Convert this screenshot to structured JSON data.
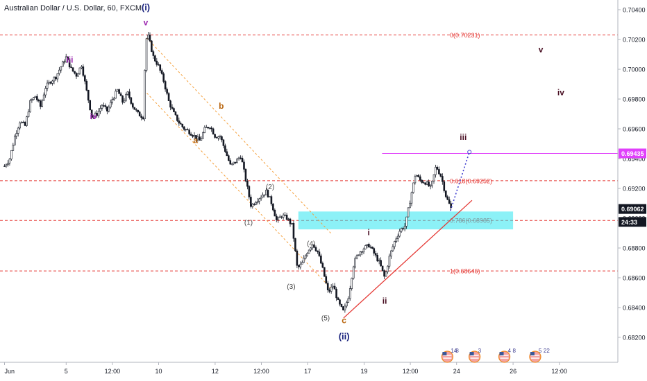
{
  "chart_title": "Australian Dollar / U.S. Dollar, 60, FXCM",
  "colors": {
    "candle": "#131722",
    "fib": "#e53935",
    "zone": "#2ee6f0",
    "resistance": "#e040fb",
    "trendline": "#e53935",
    "channel": "#f5a03c",
    "wave_primary": "#1a237e",
    "wave_purple": "#9c27b0",
    "wave_dark": "#4a1024",
    "wave_orange": "#b8640c",
    "wave_gray": "#444444",
    "projection": "#3f3fcf"
  },
  "chart_data": {
    "type": "candlestick",
    "ylim": [
      0.6812,
      0.7045
    ],
    "y_ticks": [
      "0.70400",
      "0.70200",
      "0.70000",
      "0.69800",
      "0.69600",
      "0.69400",
      "0.69200",
      "0.69000",
      "0.68800",
      "0.68600",
      "0.68400",
      "0.68200"
    ],
    "x_ticks": [
      {
        "label": "Jun",
        "t": 0
      },
      {
        "label": "5",
        "t": 12
      },
      {
        "label": "12:00",
        "t": 21
      },
      {
        "label": "10",
        "t": 30
      },
      {
        "label": "12",
        "t": 41
      },
      {
        "label": "12:00",
        "t": 50
      },
      {
        "label": "17",
        "t": 59
      },
      {
        "label": "19",
        "t": 70
      },
      {
        "label": "12:00",
        "t": 79
      },
      {
        "label": "24",
        "t": 88
      },
      {
        "label": "26",
        "t": 99
      },
      {
        "label": "12:00",
        "t": 108
      }
    ],
    "t_range": [
      0,
      120
    ],
    "price_path": [
      [
        0,
        0.6935
      ],
      [
        1,
        0.694
      ],
      [
        2,
        0.6955
      ],
      [
        3,
        0.6965
      ],
      [
        4,
        0.6962
      ],
      [
        5,
        0.6978
      ],
      [
        6,
        0.6982
      ],
      [
        7,
        0.6975
      ],
      [
        8,
        0.6988
      ],
      [
        9,
        0.6992
      ],
      [
        10,
        0.6995
      ],
      [
        11,
        0.7002
      ],
      [
        12,
        0.7008
      ],
      [
        13,
        0.7
      ],
      [
        14,
        0.6996
      ],
      [
        15,
        0.7003
      ],
      [
        16,
        0.6985
      ],
      [
        17,
        0.6968
      ],
      [
        18,
        0.697
      ],
      [
        19,
        0.6976
      ],
      [
        20,
        0.6972
      ],
      [
        21,
        0.698
      ],
      [
        22,
        0.6986
      ],
      [
        23,
        0.6978
      ],
      [
        24,
        0.6984
      ],
      [
        25,
        0.6975
      ],
      [
        26,
        0.697
      ],
      [
        27,
        0.6968
      ],
      [
        27.5,
        0.702
      ],
      [
        28,
        0.7022
      ],
      [
        29,
        0.7008
      ],
      [
        30,
        0.7002
      ],
      [
        31,
        0.6992
      ],
      [
        32,
        0.6978
      ],
      [
        33,
        0.697
      ],
      [
        34,
        0.6964
      ],
      [
        35,
        0.696
      ],
      [
        36,
        0.6958
      ],
      [
        37,
        0.6955
      ],
      [
        38,
        0.6952
      ],
      [
        39,
        0.696
      ],
      [
        40,
        0.6962
      ],
      [
        41,
        0.6955
      ],
      [
        42,
        0.6955
      ],
      [
        43,
        0.6945
      ],
      [
        44,
        0.6935
      ],
      [
        45,
        0.6938
      ],
      [
        46,
        0.6942
      ],
      [
        47,
        0.6925
      ],
      [
        48,
        0.6908
      ],
      [
        49,
        0.6912
      ],
      [
        50,
        0.6915
      ],
      [
        51,
        0.6918
      ],
      [
        52,
        0.691
      ],
      [
        53,
        0.6898
      ],
      [
        54,
        0.6902
      ],
      [
        55,
        0.69
      ],
      [
        56,
        0.6895
      ],
      [
        57,
        0.6866
      ],
      [
        58,
        0.687
      ],
      [
        59,
        0.6878
      ],
      [
        60,
        0.6883
      ],
      [
        61,
        0.6877
      ],
      [
        62,
        0.6865
      ],
      [
        63,
        0.685
      ],
      [
        64,
        0.6855
      ],
      [
        65,
        0.6843
      ],
      [
        66,
        0.6837
      ],
      [
        67,
        0.6848
      ],
      [
        68,
        0.687
      ],
      [
        69,
        0.6877
      ],
      [
        70,
        0.688
      ],
      [
        71,
        0.6882
      ],
      [
        72,
        0.6876
      ],
      [
        73,
        0.687
      ],
      [
        74,
        0.686
      ],
      [
        75,
        0.6875
      ],
      [
        76,
        0.6885
      ],
      [
        77,
        0.6892
      ],
      [
        78,
        0.6895
      ],
      [
        79,
        0.6913
      ],
      [
        80,
        0.693
      ],
      [
        81,
        0.6925
      ],
      [
        82,
        0.6924
      ],
      [
        83,
        0.692
      ],
      [
        84,
        0.6935
      ],
      [
        85,
        0.6928
      ],
      [
        86,
        0.6914
      ],
      [
        87,
        0.6906
      ]
    ],
    "fib_levels": [
      {
        "label": "0(0.70231)",
        "value": 0.70231
      },
      {
        "label": "0.618(0.69252)",
        "value": 0.69252
      },
      {
        "label": "0.786(0.68985)",
        "value": 0.68985
      },
      {
        "label": "1(0.68646)",
        "value": 0.68646
      }
    ],
    "zone": [
      0.68925,
      0.69045
    ],
    "resistance": {
      "value": 0.69435,
      "label": "0.69435"
    },
    "current_price": {
      "value": 0.69062,
      "label": "0.69062"
    },
    "countdown": {
      "value": 0.68975,
      "label": "24:33"
    },
    "wave_labels": [
      {
        "text": "(i)",
        "t": 27.5,
        "y": 0.70395,
        "color": "wave_primary",
        "size": 13
      },
      {
        "text": "v",
        "t": 27.5,
        "y": 0.70295,
        "color": "wave_purple",
        "size": 12
      },
      {
        "text": "iii",
        "t": 12.7,
        "y": 0.70045,
        "color": "wave_purple",
        "size": 12
      },
      {
        "text": "iv",
        "t": 17.3,
        "y": 0.69665,
        "color": "wave_purple",
        "size": 12
      },
      {
        "text": "b",
        "t": 42.2,
        "y": 0.69735,
        "color": "wave_orange",
        "size": 12
      },
      {
        "text": "a",
        "t": 37.2,
        "y": 0.69505,
        "color": "wave_orange",
        "size": 12
      },
      {
        "text": "(2)",
        "t": 51.7,
        "y": 0.69195,
        "color": "wave_gray",
        "size": 10
      },
      {
        "text": "(1)",
        "t": 47.5,
        "y": 0.68955,
        "color": "wave_gray",
        "size": 10
      },
      {
        "text": "(4)",
        "t": 59.7,
        "y": 0.68815,
        "color": "wave_gray",
        "size": 10
      },
      {
        "text": "(3)",
        "t": 55.8,
        "y": 0.68525,
        "color": "wave_gray",
        "size": 10
      },
      {
        "text": "(5)",
        "t": 62.5,
        "y": 0.68315,
        "color": "wave_gray",
        "size": 10
      },
      {
        "text": "c",
        "t": 66.1,
        "y": 0.68295,
        "color": "wave_orange",
        "size": 12
      },
      {
        "text": "(ii)",
        "t": 66.1,
        "y": 0.68185,
        "color": "wave_primary",
        "size": 13
      },
      {
        "text": "i",
        "t": 70.9,
        "y": 0.68885,
        "color": "wave_dark",
        "size": 12
      },
      {
        "text": "ii",
        "t": 74.0,
        "y": 0.68425,
        "color": "wave_dark",
        "size": 12
      },
      {
        "text": "iii",
        "t": 89.3,
        "y": 0.69525,
        "color": "wave_dark",
        "size": 12
      },
      {
        "text": "iv",
        "t": 108.3,
        "y": 0.69825,
        "color": "wave_dark",
        "size": 12
      },
      {
        "text": "v",
        "t": 104.4,
        "y": 0.70115,
        "color": "wave_dark",
        "size": 12
      }
    ],
    "channel": {
      "upper": [
        [
          27.7,
          0.7021
        ],
        [
          63.5,
          0.689
        ]
      ],
      "lower": [
        [
          27.7,
          0.6984
        ],
        [
          63.5,
          0.6853
        ]
      ]
    },
    "trendline": [
      [
        66,
        0.6833
      ],
      [
        91,
        0.6912
      ]
    ],
    "projection": [
      [
        86.8,
        0.6905
      ],
      [
        90.5,
        0.69445
      ]
    ],
    "event_icons": [
      {
        "t": 86.2,
        "count": "14",
        "sub": "8"
      },
      {
        "t": 91.5,
        "count": "3",
        "sub": ""
      },
      {
        "t": 97.3,
        "count": "4",
        "sub": "8"
      },
      {
        "t": 103.3,
        "count": "5",
        "sub": "22"
      }
    ]
  }
}
